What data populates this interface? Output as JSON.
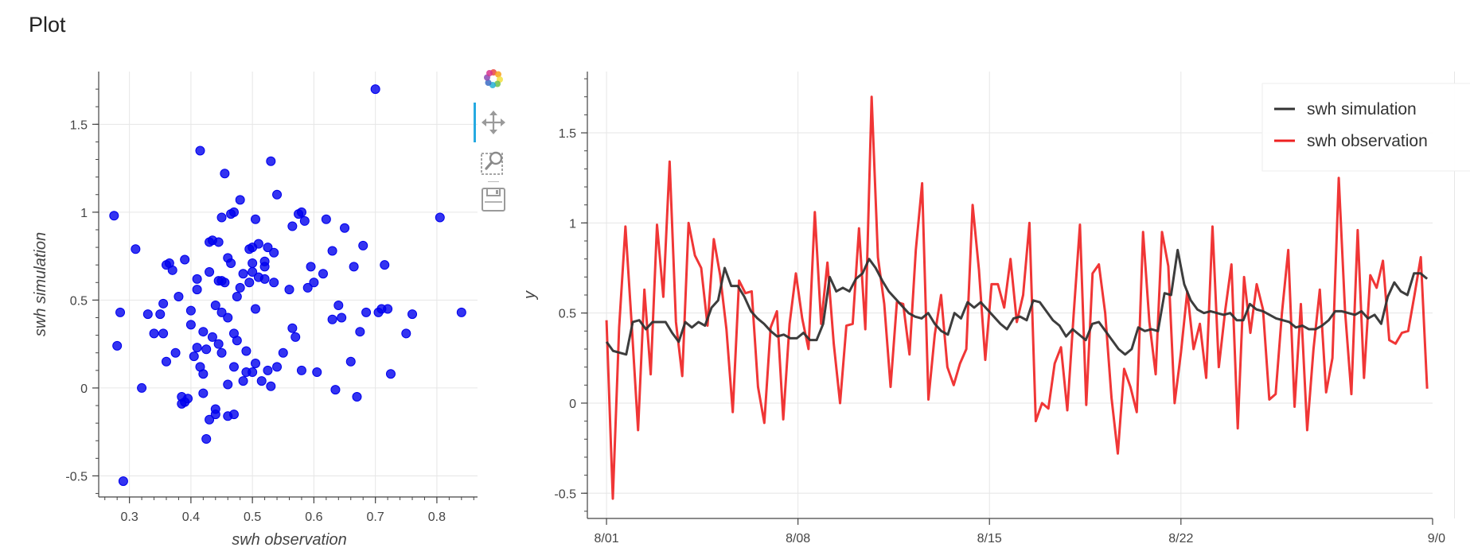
{
  "page": {
    "title": "Plot"
  },
  "toolbar": {
    "tools": [
      {
        "name": "bokeh-logo-icon",
        "interactable": true
      },
      {
        "name": "pan-icon",
        "interactable": true,
        "active": true
      },
      {
        "name": "box-zoom-icon",
        "interactable": true
      },
      {
        "name": "save-icon",
        "interactable": true
      }
    ],
    "active_color": "#26aae1"
  },
  "chart_data": [
    {
      "type": "scatter",
      "xlabel": "swh observation",
      "ylabel": "swh simulation",
      "xlim": [
        0.25,
        0.87
      ],
      "ylim": [
        -0.62,
        1.8
      ],
      "xticks": [
        0.3,
        0.4,
        0.5,
        0.6,
        0.7,
        0.8
      ],
      "xtick_labels": [
        "0.3",
        "0.4",
        "0.5",
        "0.6",
        "0.7",
        "0.8"
      ],
      "yticks": [
        -0.5,
        0,
        0.5,
        1,
        1.5
      ],
      "ytick_labels": [
        "-0.5",
        "0",
        "0.5",
        "1",
        "1.5"
      ],
      "grid": true,
      "color": "#0000ee",
      "points": [
        [
          0.275,
          0.98
        ],
        [
          0.28,
          0.24
        ],
        [
          0.285,
          0.43
        ],
        [
          0.29,
          -0.53
        ],
        [
          0.31,
          0.79
        ],
        [
          0.32,
          0.0
        ],
        [
          0.35,
          0.42
        ],
        [
          0.355,
          0.48
        ],
        [
          0.355,
          0.31
        ],
        [
          0.36,
          0.15
        ],
        [
          0.365,
          0.71
        ],
        [
          0.37,
          0.67
        ],
        [
          0.375,
          0.2
        ],
        [
          0.38,
          0.52
        ],
        [
          0.385,
          -0.05
        ],
        [
          0.39,
          0.73
        ],
        [
          0.385,
          -0.09
        ],
        [
          0.395,
          -0.06
        ],
        [
          0.4,
          0.44
        ],
        [
          0.405,
          0.18
        ],
        [
          0.41,
          0.62
        ],
        [
          0.41,
          0.56
        ],
        [
          0.415,
          1.35
        ],
        [
          0.415,
          0.12
        ],
        [
          0.42,
          0.08
        ],
        [
          0.42,
          0.32
        ],
        [
          0.42,
          -0.03
        ],
        [
          0.425,
          -0.29
        ],
        [
          0.425,
          0.22
        ],
        [
          0.43,
          0.66
        ],
        [
          0.43,
          0.83
        ],
        [
          0.435,
          0.84
        ],
        [
          0.435,
          0.29
        ],
        [
          0.44,
          0.47
        ],
        [
          0.44,
          -0.12
        ],
        [
          0.44,
          -0.15
        ],
        [
          0.445,
          0.61
        ],
        [
          0.445,
          0.25
        ],
        [
          0.45,
          0.61
        ],
        [
          0.45,
          0.2
        ],
        [
          0.45,
          0.43
        ],
        [
          0.45,
          0.97
        ],
        [
          0.455,
          0.6
        ],
        [
          0.455,
          1.22
        ],
        [
          0.46,
          0.4
        ],
        [
          0.46,
          0.74
        ],
        [
          0.46,
          0.02
        ],
        [
          0.46,
          -0.16
        ],
        [
          0.465,
          0.71
        ],
        [
          0.465,
          0.99
        ],
        [
          0.47,
          1.0
        ],
        [
          0.47,
          0.31
        ],
        [
          0.47,
          0.12
        ],
        [
          0.47,
          -0.15
        ],
        [
          0.475,
          0.27
        ],
        [
          0.475,
          0.52
        ],
        [
          0.48,
          1.07
        ],
        [
          0.48,
          0.57
        ],
        [
          0.485,
          0.65
        ],
        [
          0.485,
          0.04
        ],
        [
          0.49,
          0.09
        ],
        [
          0.49,
          0.21
        ],
        [
          0.495,
          0.79
        ],
        [
          0.495,
          0.6
        ],
        [
          0.5,
          0.8
        ],
        [
          0.5,
          0.66
        ],
        [
          0.505,
          0.45
        ],
        [
          0.505,
          0.14
        ],
        [
          0.505,
          0.96
        ],
        [
          0.51,
          0.82
        ],
        [
          0.51,
          0.63
        ],
        [
          0.515,
          0.04
        ],
        [
          0.52,
          0.69
        ],
        [
          0.52,
          0.72
        ],
        [
          0.52,
          0.62
        ],
        [
          0.525,
          0.8
        ],
        [
          0.525,
          0.1
        ],
        [
          0.53,
          1.29
        ],
        [
          0.53,
          0.01
        ],
        [
          0.535,
          0.77
        ],
        [
          0.535,
          0.6
        ],
        [
          0.54,
          1.1
        ],
        [
          0.54,
          0.12
        ],
        [
          0.55,
          0.2
        ],
        [
          0.56,
          0.56
        ],
        [
          0.565,
          0.92
        ],
        [
          0.565,
          0.34
        ],
        [
          0.57,
          0.29
        ],
        [
          0.575,
          0.99
        ],
        [
          0.58,
          1.0
        ],
        [
          0.58,
          0.1
        ],
        [
          0.585,
          0.95
        ],
        [
          0.59,
          0.57
        ],
        [
          0.595,
          0.69
        ],
        [
          0.6,
          0.6
        ],
        [
          0.605,
          0.09
        ],
        [
          0.615,
          0.65
        ],
        [
          0.62,
          0.96
        ],
        [
          0.63,
          0.39
        ],
        [
          0.63,
          0.78
        ],
        [
          0.635,
          -0.01
        ],
        [
          0.64,
          0.47
        ],
        [
          0.645,
          0.4
        ],
        [
          0.65,
          0.91
        ],
        [
          0.66,
          0.15
        ],
        [
          0.665,
          0.69
        ],
        [
          0.67,
          -0.05
        ],
        [
          0.675,
          0.32
        ],
        [
          0.68,
          0.81
        ],
        [
          0.685,
          0.43
        ],
        [
          0.7,
          1.7
        ],
        [
          0.705,
          0.43
        ],
        [
          0.71,
          0.45
        ],
        [
          0.715,
          0.7
        ],
        [
          0.72,
          0.45
        ],
        [
          0.725,
          0.08
        ],
        [
          0.75,
          0.31
        ],
        [
          0.76,
          0.42
        ],
        [
          0.805,
          0.97
        ],
        [
          0.84,
          0.43
        ],
        [
          0.33,
          0.42
        ],
        [
          0.34,
          0.31
        ],
        [
          0.36,
          0.7
        ],
        [
          0.39,
          -0.08
        ],
        [
          0.4,
          0.36
        ],
        [
          0.41,
          0.23
        ],
        [
          0.43,
          -0.18
        ],
        [
          0.445,
          0.83
        ],
        [
          0.5,
          0.09
        ],
        [
          0.5,
          0.71
        ]
      ]
    },
    {
      "type": "line",
      "xlabel": "",
      "ylabel": "y",
      "xlim": [
        -0.7,
        30.2
      ],
      "ylim": [
        -0.64,
        1.84
      ],
      "xticks": [
        0,
        7,
        14,
        21,
        31
      ],
      "xtick_labels": [
        "8/01",
        "8/08",
        "8/15",
        "8/22",
        "9/0"
      ],
      "yticks": [
        -0.5,
        0,
        0.5,
        1,
        1.5
      ],
      "ytick_labels": [
        "-0.5",
        "0",
        "0.5",
        "1",
        "1.5"
      ],
      "grid": true,
      "legend_position": "top-right",
      "series": [
        {
          "name": "swh simulation",
          "color": "#333333",
          "values": [
            0.34,
            0.29,
            0.28,
            0.27,
            0.45,
            0.46,
            0.41,
            0.45,
            0.45,
            0.45,
            0.39,
            0.34,
            0.45,
            0.42,
            0.45,
            0.43,
            0.53,
            0.57,
            0.75,
            0.65,
            0.65,
            0.59,
            0.51,
            0.47,
            0.44,
            0.4,
            0.37,
            0.38,
            0.36,
            0.36,
            0.39,
            0.35,
            0.35,
            0.44,
            0.7,
            0.62,
            0.64,
            0.62,
            0.69,
            0.72,
            0.8,
            0.75,
            0.68,
            0.62,
            0.58,
            0.54,
            0.5,
            0.48,
            0.47,
            0.5,
            0.44,
            0.4,
            0.38,
            0.5,
            0.47,
            0.56,
            0.53,
            0.56,
            0.52,
            0.48,
            0.44,
            0.41,
            0.47,
            0.48,
            0.46,
            0.57,
            0.56,
            0.51,
            0.46,
            0.43,
            0.37,
            0.41,
            0.38,
            0.35,
            0.44,
            0.45,
            0.4,
            0.35,
            0.3,
            0.27,
            0.3,
            0.42,
            0.4,
            0.41,
            0.4,
            0.61,
            0.6,
            0.85,
            0.66,
            0.57,
            0.52,
            0.5,
            0.51,
            0.5,
            0.49,
            0.5,
            0.46,
            0.46,
            0.55,
            0.52,
            0.51,
            0.49,
            0.47,
            0.46,
            0.45,
            0.42,
            0.43,
            0.41,
            0.41,
            0.43,
            0.46,
            0.51,
            0.51,
            0.5,
            0.49,
            0.51,
            0.47,
            0.49,
            0.44,
            0.59,
            0.67,
            0.62,
            0.6,
            0.72,
            0.72,
            0.69
          ]
        },
        {
          "name": "swh observation",
          "color": "#ee2020",
          "values": [
            0.46,
            -0.53,
            0.42,
            0.98,
            0.43,
            -0.15,
            0.63,
            0.16,
            0.99,
            0.59,
            1.34,
            0.45,
            0.15,
            1.0,
            0.82,
            0.75,
            0.43,
            0.91,
            0.71,
            0.41,
            -0.05,
            0.68,
            0.61,
            0.62,
            0.09,
            -0.11,
            0.42,
            0.51,
            -0.09,
            0.44,
            0.72,
            0.47,
            0.3,
            1.06,
            0.44,
            0.78,
            0.33,
            0.0,
            0.43,
            0.44,
            0.97,
            0.41,
            1.7,
            0.81,
            0.55,
            0.09,
            0.56,
            0.55,
            0.27,
            0.85,
            1.22,
            0.02,
            0.38,
            0.6,
            0.2,
            0.1,
            0.22,
            0.3,
            1.1,
            0.74,
            0.24,
            0.66,
            0.66,
            0.53,
            0.8,
            0.45,
            0.6,
            1.0,
            -0.1,
            0.0,
            -0.03,
            0.22,
            0.31,
            -0.04,
            0.49,
            0.99,
            -0.01,
            0.72,
            0.77,
            0.5,
            0.03,
            -0.28,
            0.19,
            0.09,
            -0.05,
            0.95,
            0.45,
            0.16,
            0.95,
            0.76,
            0.0,
            0.28,
            0.62,
            0.3,
            0.44,
            0.14,
            0.98,
            0.2,
            0.51,
            0.77,
            -0.14,
            0.7,
            0.39,
            0.66,
            0.52,
            0.02,
            0.05,
            0.5,
            0.85,
            -0.02,
            0.55,
            -0.15,
            0.3,
            0.63,
            0.06,
            0.25,
            1.25,
            0.51,
            0.05,
            0.96,
            0.14,
            0.71,
            0.64,
            0.79,
            0.35,
            0.33,
            0.39,
            0.4,
            0.6,
            0.81,
            0.08
          ]
        }
      ]
    }
  ]
}
